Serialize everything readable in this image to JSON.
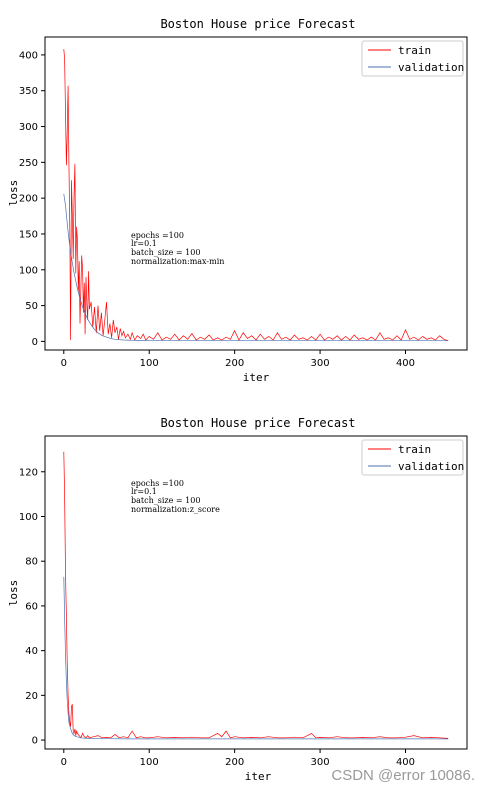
{
  "chart_data": [
    {
      "type": "line",
      "title": "Boston House price Forecast",
      "xlabel": "iter",
      "ylabel": "loss",
      "xlim": [
        -22,
        472
      ],
      "ylim": [
        -12,
        425
      ],
      "xticks": [
        0,
        100,
        200,
        300,
        400
      ],
      "yticks": [
        0,
        50,
        100,
        150,
        200,
        250,
        300,
        350,
        400
      ],
      "legend_position": "top-right",
      "annotation": [
        "epochs =100",
        "lr=0.1",
        "batch_size = 100",
        "normalization:max-min"
      ],
      "series": [
        {
          "name": "train",
          "color": "#ff0000",
          "x": [
            0,
            1,
            2,
            3,
            4,
            5,
            6,
            7,
            8,
            9,
            10,
            11,
            12,
            13,
            14,
            15,
            16,
            17,
            18,
            19,
            20,
            21,
            22,
            23,
            24,
            25,
            26,
            27,
            28,
            29,
            30,
            32,
            34,
            36,
            38,
            40,
            42,
            44,
            46,
            48,
            50,
            52,
            54,
            56,
            58,
            60,
            62,
            64,
            66,
            68,
            70,
            72,
            75,
            78,
            80,
            83,
            86,
            90,
            93,
            96,
            100,
            105,
            110,
            115,
            120,
            125,
            130,
            135,
            140,
            145,
            150,
            155,
            160,
            165,
            170,
            175,
            180,
            185,
            190,
            195,
            200,
            205,
            210,
            215,
            220,
            225,
            230,
            235,
            240,
            245,
            250,
            255,
            260,
            265,
            270,
            275,
            280,
            285,
            290,
            295,
            300,
            305,
            310,
            315,
            320,
            325,
            330,
            335,
            340,
            345,
            350,
            355,
            360,
            365,
            370,
            375,
            380,
            385,
            390,
            395,
            400,
            405,
            410,
            415,
            420,
            425,
            430,
            435,
            440,
            445,
            450
          ],
          "y": [
            408,
            395,
            320,
            246,
            290,
            357,
            250,
            160,
            2,
            225,
            178,
            115,
            200,
            248,
            95,
            160,
            140,
            68,
            112,
            25,
            75,
            120,
            100,
            40,
            82,
            10,
            90,
            50,
            30,
            98,
            45,
            55,
            20,
            48,
            12,
            50,
            15,
            40,
            8,
            30,
            55,
            10,
            25,
            5,
            30,
            12,
            20,
            3,
            18,
            8,
            14,
            5,
            10,
            3,
            12,
            2,
            8,
            4,
            10,
            2,
            7,
            3,
            12,
            2,
            6,
            3,
            10,
            2,
            8,
            3,
            11,
            2,
            6,
            3,
            9,
            2,
            5,
            2,
            6,
            3,
            15,
            2,
            12,
            4,
            8,
            2,
            10,
            3,
            7,
            2,
            12,
            3,
            6,
            2,
            9,
            3,
            5,
            2,
            7,
            2,
            10,
            2,
            6,
            3,
            8,
            2,
            7,
            2,
            9,
            3,
            5,
            2,
            6,
            2,
            12,
            3,
            5,
            2,
            8,
            2,
            16,
            3,
            6,
            2,
            7,
            3,
            5,
            2,
            8,
            3,
            1
          ]
        },
        {
          "name": "validation",
          "color": "#4c72b0",
          "x": [
            0,
            2,
            4,
            6,
            8,
            10,
            12,
            14,
            16,
            18,
            20,
            22,
            25,
            28,
            30,
            35,
            40,
            45,
            50,
            55,
            60,
            70,
            80,
            90,
            100,
            120,
            150,
            200,
            250,
            300,
            350,
            400,
            450
          ],
          "y": [
            206,
            190,
            165,
            143,
            125,
            110,
            96,
            84,
            73,
            64,
            56,
            48,
            39,
            31,
            27,
            18,
            12,
            8,
            6,
            4,
            3,
            2,
            1.5,
            1.2,
            1,
            1,
            1,
            1,
            1,
            1,
            1,
            1,
            1
          ]
        }
      ]
    },
    {
      "type": "line",
      "title": "Boston House price Forecast",
      "xlabel": "iter",
      "ylabel": "loss",
      "xlim": [
        -22,
        472
      ],
      "ylim": [
        -4,
        136
      ],
      "xticks": [
        0,
        100,
        200,
        300,
        400
      ],
      "yticks": [
        0,
        20,
        40,
        60,
        80,
        100,
        120
      ],
      "legend_position": "top-right",
      "annotation": [
        "epochs =100",
        "lr=0.1",
        "batch_size = 100",
        "normalization:z_score"
      ],
      "series": [
        {
          "name": "train",
          "color": "#ff0000",
          "x": [
            0,
            1,
            2,
            3,
            4,
            5,
            6,
            7,
            8,
            9,
            10,
            11,
            12,
            13,
            14,
            15,
            16,
            18,
            20,
            22,
            24,
            26,
            28,
            30,
            35,
            40,
            45,
            50,
            55,
            60,
            65,
            70,
            75,
            80,
            85,
            90,
            95,
            100,
            110,
            120,
            130,
            140,
            150,
            160,
            170,
            180,
            185,
            190,
            195,
            200,
            210,
            220,
            230,
            240,
            250,
            260,
            270,
            280,
            290,
            295,
            300,
            310,
            320,
            330,
            340,
            350,
            360,
            370,
            380,
            390,
            400,
            410,
            420,
            430,
            440,
            450
          ],
          "y": [
            129,
            110,
            75,
            55,
            35,
            20,
            12,
            8,
            6,
            15,
            16,
            4,
            3,
            5,
            2,
            4,
            3,
            2,
            1,
            3,
            1.5,
            1,
            2,
            1,
            1.5,
            2,
            1,
            1.2,
            1,
            2.5,
            1,
            1.5,
            1,
            4,
            1,
            1.5,
            1,
            1,
            1.5,
            1,
            1.2,
            1,
            1.3,
            1,
            1,
            3,
            1.5,
            4,
            1,
            1.5,
            1,
            1.2,
            1,
            1.5,
            1,
            1,
            1.3,
            1,
            3,
            1,
            1.2,
            1,
            1.5,
            1,
            1,
            1.2,
            1,
            1.5,
            1,
            1,
            1.3,
            2,
            1,
            1.2,
            1,
            0.8
          ]
        },
        {
          "name": "validation",
          "color": "#4c72b0",
          "x": [
            0,
            1,
            2,
            3,
            4,
            5,
            6,
            8,
            10,
            12,
            15,
            20,
            25,
            30,
            40,
            50,
            75,
            100,
            150,
            200,
            250,
            300,
            350,
            400,
            450
          ],
          "y": [
            73,
            55,
            38,
            26,
            18,
            12,
            8,
            5,
            3,
            2,
            1.5,
            1,
            0.8,
            0.7,
            0.6,
            0.6,
            0.5,
            0.5,
            0.5,
            0.5,
            0.5,
            0.5,
            0.5,
            0.5,
            0.5
          ]
        }
      ]
    }
  ],
  "watermark": "CSDN @error 10086."
}
